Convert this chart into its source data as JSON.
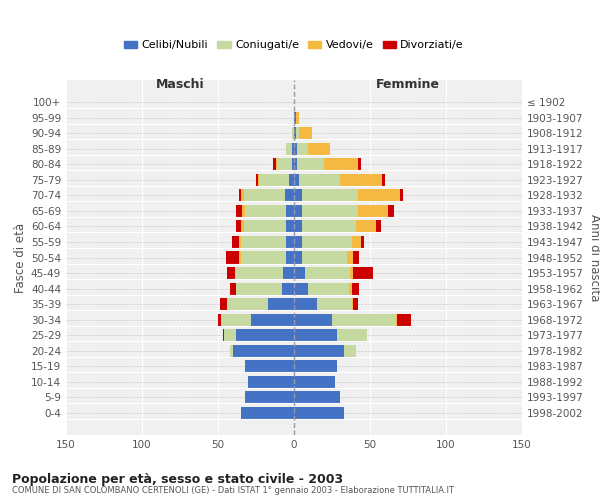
{
  "age_groups": [
    "0-4",
    "5-9",
    "10-14",
    "15-19",
    "20-24",
    "25-29",
    "30-34",
    "35-39",
    "40-44",
    "45-49",
    "50-54",
    "55-59",
    "60-64",
    "65-69",
    "70-74",
    "75-79",
    "80-84",
    "85-89",
    "90-94",
    "95-99",
    "100+"
  ],
  "birth_years": [
    "1998-2002",
    "1993-1997",
    "1988-1992",
    "1983-1987",
    "1978-1982",
    "1973-1977",
    "1968-1972",
    "1963-1967",
    "1958-1962",
    "1953-1957",
    "1948-1952",
    "1943-1947",
    "1938-1942",
    "1933-1937",
    "1928-1932",
    "1923-1927",
    "1918-1922",
    "1913-1917",
    "1908-1912",
    "1903-1907",
    "≤ 1902"
  ],
  "maschi": {
    "celibe": [
      35,
      32,
      30,
      32,
      40,
      38,
      28,
      17,
      8,
      7,
      5,
      5,
      5,
      5,
      6,
      3,
      1,
      1,
      0,
      0,
      0
    ],
    "coniugato": [
      0,
      0,
      0,
      0,
      2,
      8,
      20,
      27,
      30,
      32,
      30,
      30,
      28,
      27,
      27,
      20,
      10,
      4,
      1,
      0,
      0
    ],
    "vedovo": [
      0,
      0,
      0,
      0,
      0,
      0,
      0,
      0,
      0,
      0,
      1,
      1,
      2,
      2,
      2,
      1,
      1,
      0,
      0,
      0,
      0
    ],
    "divorziato": [
      0,
      0,
      0,
      0,
      0,
      1,
      2,
      5,
      4,
      5,
      9,
      5,
      3,
      4,
      1,
      1,
      2,
      0,
      0,
      0,
      0
    ]
  },
  "femmine": {
    "nubile": [
      33,
      30,
      27,
      28,
      33,
      28,
      25,
      15,
      9,
      7,
      5,
      5,
      5,
      5,
      5,
      3,
      2,
      2,
      1,
      1,
      0
    ],
    "coniugata": [
      0,
      0,
      0,
      0,
      8,
      20,
      42,
      23,
      27,
      30,
      30,
      33,
      36,
      37,
      37,
      27,
      18,
      7,
      2,
      0,
      0
    ],
    "vedova": [
      0,
      0,
      0,
      0,
      0,
      0,
      1,
      1,
      2,
      2,
      4,
      6,
      13,
      20,
      28,
      28,
      22,
      15,
      9,
      2,
      0
    ],
    "divorziata": [
      0,
      0,
      0,
      0,
      0,
      0,
      9,
      3,
      5,
      13,
      4,
      2,
      3,
      4,
      2,
      2,
      2,
      0,
      0,
      0,
      0
    ]
  },
  "colors": {
    "celibe": "#4472c4",
    "coniugato": "#c5d9a0",
    "vedovo": "#f5b942",
    "divorziato": "#cc0000"
  },
  "title": "Popolazione per età, sesso e stato civile - 2003",
  "subtitle": "COMUNE DI SAN COLOMBANO CERTENOLI (GE) - Dati ISTAT 1° gennaio 2003 - Elaborazione TUTTITALIA.IT",
  "ylabel_left": "Fasce di età",
  "ylabel_right": "Anni di nascita",
  "xlabel_left": "Maschi",
  "xlabel_right": "Femmine",
  "xlim": 150,
  "bg_color": "#ffffff",
  "plot_bg_color": "#f0f0f0"
}
